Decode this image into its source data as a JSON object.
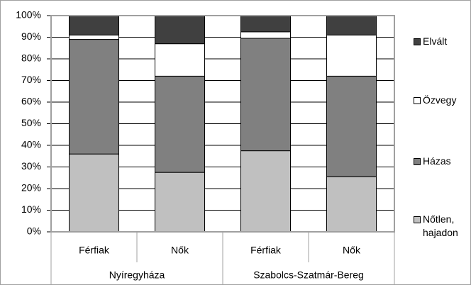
{
  "chart_data": {
    "type": "stacked_bar",
    "categories": [
      "Férfiak",
      "Nők",
      "Férfiak",
      "Nők"
    ],
    "groups": [
      "Nyíregyháza",
      "Szabolcs-Szatmár-Bereg"
    ],
    "series": [
      {
        "name": "Nőtlen, hajadon",
        "color": "#c0c0c0",
        "values": [
          36,
          27.5,
          37.5,
          25.5
        ]
      },
      {
        "name": "Házas",
        "color": "#808080",
        "values": [
          53,
          44.5,
          52,
          46.5
        ]
      },
      {
        "name": "Özvegy",
        "color": "#ffffff",
        "values": [
          2,
          15,
          3,
          19
        ]
      },
      {
        "name": "Elvált",
        "color": "#404040",
        "values": [
          9,
          13,
          7.5,
          9
        ]
      }
    ],
    "ylim": [
      0,
      100
    ],
    "yticks": [
      {
        "value": 0,
        "label": "0%"
      },
      {
        "value": 10,
        "label": "10%"
      },
      {
        "value": 20,
        "label": "20%"
      },
      {
        "value": 30,
        "label": "30%"
      },
      {
        "value": 40,
        "label": "40%"
      },
      {
        "value": 50,
        "label": "50%"
      },
      {
        "value": 60,
        "label": "60%"
      },
      {
        "value": 70,
        "label": "70%"
      },
      {
        "value": 80,
        "label": "80%"
      },
      {
        "value": 90,
        "label": "90%"
      },
      {
        "value": 100,
        "label": "100%"
      }
    ],
    "grid": true,
    "legend": "right"
  }
}
